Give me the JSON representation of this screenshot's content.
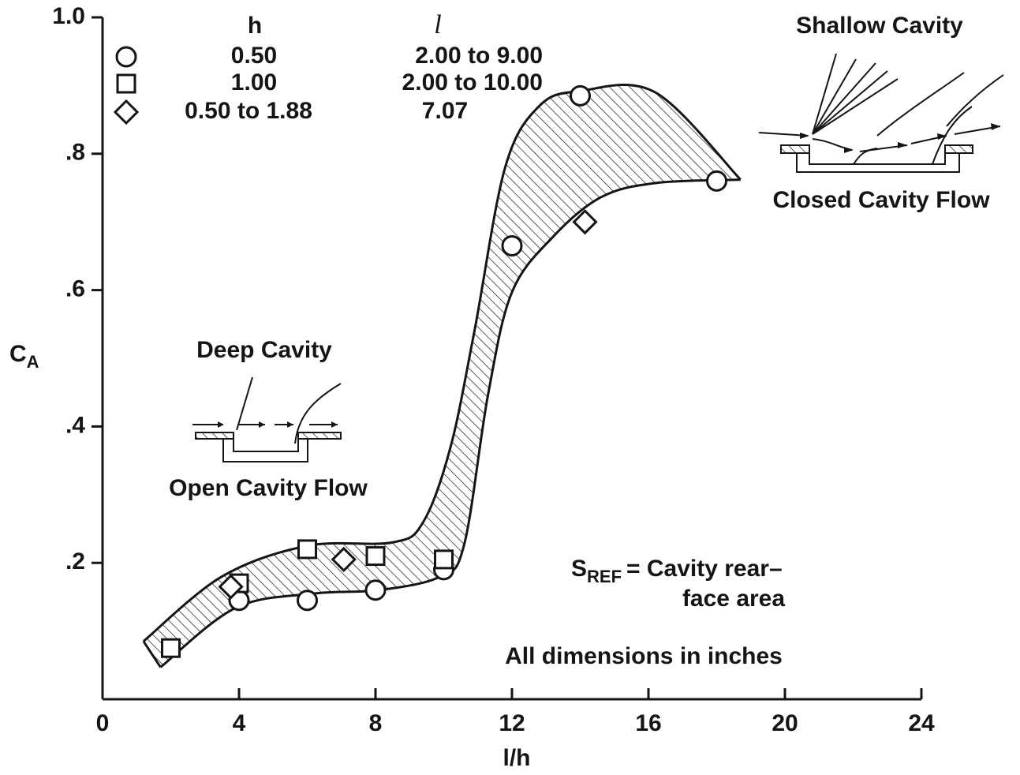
{
  "chart_data": {
    "type": "scatter",
    "xlim": [
      0,
      24
    ],
    "ylim": [
      0,
      1
    ],
    "xticks": [
      0,
      4,
      8,
      12,
      16,
      20,
      24
    ],
    "yticks": [
      {
        "value": 0.2,
        "label": ".2"
      },
      {
        "value": 0.4,
        "label": ".4"
      },
      {
        "value": 0.6,
        "label": ".6"
      },
      {
        "value": 0.8,
        "label": ".8"
      },
      {
        "value": 1,
        "label": "1.0"
      }
    ],
    "x_label": "l/h",
    "y_label": {
      "text": "C",
      "subscript": "A"
    },
    "legend": {
      "headers": [
        "h",
        "l"
      ]
    },
    "series": [
      {
        "name": "0.50",
        "l": "2.00 to 9.00",
        "marker": "circle",
        "color": "#151515",
        "x": [
          4,
          6,
          8,
          10,
          12,
          14,
          18
        ],
        "values": [
          0.145,
          0.145,
          0.16,
          0.19,
          0.665,
          0.885,
          0.76
        ]
      },
      {
        "name": "1.00",
        "l": "2.00 to 10.00",
        "marker": "square",
        "color": "#151515",
        "x": [
          2,
          4,
          6,
          8,
          10
        ],
        "values": [
          0.075,
          0.17,
          0.22,
          0.21,
          0.205
        ]
      },
      {
        "name": "0.50 to 1.88",
        "l": "7.07",
        "marker": "diamond",
        "color": "#151515",
        "x": [
          3.76,
          7.07,
          14.14
        ],
        "values": [
          0.165,
          0.205,
          0.7
        ]
      }
    ],
    "band": {
      "upper": {
        "x": [
          1.2,
          3.5,
          6,
          8.5,
          9.4,
          10.2,
          10.9,
          11.8,
          12.8,
          14,
          16.2,
          18.7
        ],
        "values": [
          0.085,
          0.18,
          0.225,
          0.23,
          0.26,
          0.37,
          0.54,
          0.78,
          0.87,
          0.892,
          0.89,
          0.762
        ]
      },
      "lower": {
        "x": [
          1.7,
          3.9,
          6.2,
          8.1,
          9.9,
          10.6,
          11.3,
          12,
          13.2,
          14.6,
          16.2,
          18.7
        ],
        "values": [
          0.047,
          0.134,
          0.155,
          0.16,
          0.18,
          0.227,
          0.447,
          0.597,
          0.678,
          0.736,
          0.757,
          0.762
        ]
      }
    },
    "annotations": {
      "shallow_cavity": "Shallow Cavity",
      "closed_cavity_flow": "Closed Cavity Flow",
      "deep_cavity": "Deep Cavity",
      "open_cavity_flow": "Open Cavity Flow",
      "sref": {
        "symbol": "S",
        "subscript": "REF",
        "text": "= Cavity rear–",
        "text2": "face area"
      },
      "dimensions": "All dimensions in inches"
    }
  }
}
